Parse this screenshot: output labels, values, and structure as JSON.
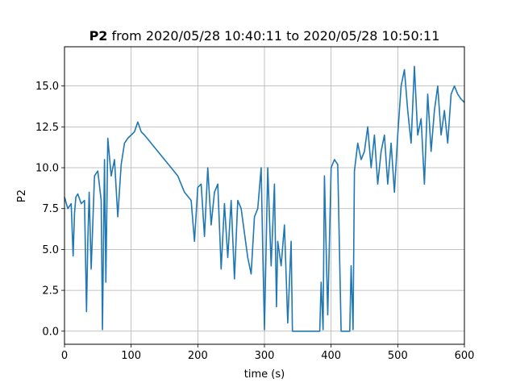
{
  "chart_data": {
    "type": "line",
    "title": {
      "bold": "P2",
      "rest": " from 2020/05/28 10:40:11 to 2020/05/28 10:50:11"
    },
    "xlabel": "time (s)",
    "ylabel": "P2",
    "xlim": [
      0,
      600
    ],
    "ylim": [
      -0.8,
      17.4
    ],
    "xticks": [
      0,
      100,
      200,
      300,
      400,
      500,
      600
    ],
    "xtick_labels": [
      "0",
      "100",
      "200",
      "300",
      "400",
      "500",
      "600"
    ],
    "yticks": [
      0.0,
      2.5,
      5.0,
      7.5,
      10.0,
      12.5,
      15.0
    ],
    "ytick_labels": [
      "0.0",
      "2.5",
      "5.0",
      "7.5",
      "10.0",
      "12.5",
      "15.0"
    ],
    "grid": true,
    "line_color": "#1f77b4",
    "series": [
      {
        "x": [
          0,
          5,
          10,
          13,
          15,
          17,
          20,
          25,
          30,
          33,
          35,
          37,
          40,
          45,
          50,
          55,
          57,
          60,
          62,
          65,
          70,
          75,
          80,
          85,
          90,
          95,
          100,
          105,
          110,
          115,
          120,
          130,
          140,
          150,
          160,
          170,
          180,
          190,
          195,
          200,
          205,
          210,
          215,
          220,
          225,
          230,
          235,
          240,
          245,
          250,
          255,
          260,
          265,
          270,
          275,
          280,
          285,
          290,
          295,
          298,
          300,
          305,
          310,
          315,
          318,
          320,
          325,
          330,
          335,
          340,
          342,
          345,
          350,
          360,
          370,
          380,
          383,
          385,
          388,
          390,
          395,
          400,
          405,
          410,
          415,
          420,
          425,
          428,
          430,
          433,
          435,
          440,
          445,
          450,
          455,
          460,
          465,
          470,
          475,
          480,
          485,
          490,
          495,
          500,
          505,
          510,
          515,
          520,
          525,
          530,
          535,
          540,
          545,
          550,
          555,
          560,
          565,
          570,
          575,
          580,
          585,
          590,
          595,
          600
        ],
        "y": [
          8.2,
          7.5,
          7.8,
          4.6,
          7.2,
          8.2,
          8.4,
          7.8,
          8.0,
          1.2,
          5.5,
          8.5,
          3.8,
          9.5,
          9.8,
          8.0,
          0.1,
          10.5,
          3.0,
          11.8,
          9.5,
          10.5,
          7.0,
          10.2,
          11.5,
          11.8,
          12.0,
          12.2,
          12.8,
          12.2,
          12.0,
          11.5,
          11.0,
          10.5,
          10.0,
          9.5,
          8.5,
          8.0,
          5.5,
          8.8,
          9.0,
          5.8,
          10.0,
          6.5,
          8.5,
          9.0,
          3.8,
          7.8,
          4.5,
          8.0,
          3.2,
          8.0,
          7.5,
          6.0,
          4.5,
          3.5,
          7.0,
          7.5,
          10.0,
          4.0,
          0.1,
          10.0,
          4.0,
          9.0,
          1.5,
          5.5,
          4.0,
          6.5,
          0.5,
          5.5,
          0.0,
          0.0,
          0.0,
          0.0,
          0.0,
          0.0,
          0.0,
          3.0,
          0.1,
          9.5,
          1.0,
          10.0,
          10.5,
          10.2,
          0.0,
          0.0,
          0.0,
          0.0,
          4.0,
          0.1,
          9.8,
          11.5,
          10.5,
          11.0,
          12.5,
          10.0,
          12.0,
          9.0,
          11.0,
          12.0,
          9.0,
          11.5,
          8.5,
          12.0,
          15.0,
          16.0,
          13.5,
          11.5,
          16.2,
          12.0,
          13.0,
          9.0,
          14.5,
          11.0,
          13.5,
          15.0,
          12.0,
          13.5,
          11.5,
          14.5,
          15.0,
          14.5,
          14.2,
          14.0
        ]
      }
    ]
  }
}
